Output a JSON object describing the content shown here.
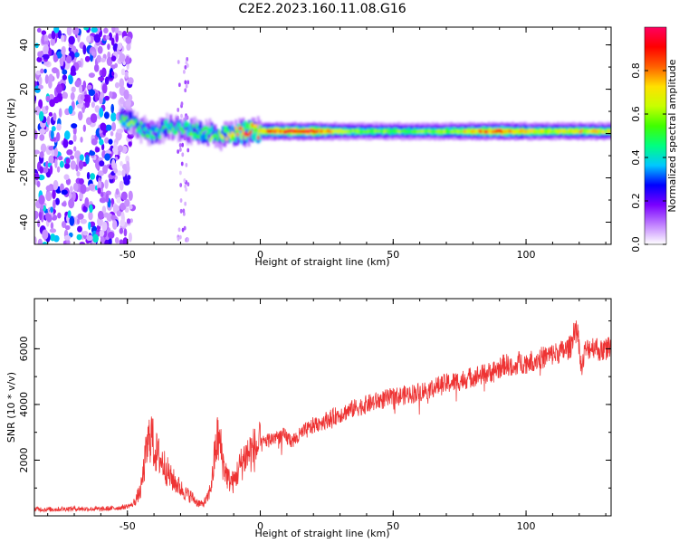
{
  "figure": {
    "title": "C2E2.2023.160.11.08.G16"
  },
  "chart_data": [
    {
      "type": "heatmap",
      "title": "C2E2.2023.160.11.08.G16",
      "xlabel": "Height of straight line (km)",
      "ylabel": "Frequency (Hz)",
      "xlim": [
        -85,
        132
      ],
      "ylim": [
        -50,
        48
      ],
      "x_ticks": [
        -50,
        0,
        50,
        100
      ],
      "y_ticks": [
        -40,
        -20,
        0,
        20,
        40
      ],
      "x_tick_labels": [
        "-50",
        "0",
        "50",
        "100"
      ],
      "y_tick_labels": [
        "-40",
        "-20",
        "0",
        "20",
        "40"
      ],
      "colorbar": {
        "label": "Normalized spectral amplitude",
        "range": [
          0,
          1
        ],
        "ticks": [
          0,
          0.2,
          0.4,
          0.6,
          0.8
        ],
        "tick_labels": [
          "0.0",
          "0.2",
          "0.4",
          "0.6",
          "0.8"
        ],
        "colormap": [
          "#ffffff",
          "#c080ff",
          "#7a00ff",
          "#0000ff",
          "#00c8ff",
          "#00ff80",
          "#40ff00",
          "#c8ff00",
          "#ffe000",
          "#ff6000",
          "#ff0000",
          "#ff0060"
        ]
      },
      "ridge": {
        "description_values": "center frequency of dominant spectral band vs height",
        "x": [
          -53,
          -50,
          -45,
          -40,
          -35,
          -30,
          -25,
          -20,
          -15,
          -10,
          -5,
          0,
          10,
          20,
          30,
          40,
          50,
          60,
          70,
          80,
          90,
          100,
          110,
          120,
          132
        ],
        "y": [
          8,
          6,
          2,
          0,
          3,
          2,
          1,
          0,
          -1,
          0,
          1,
          1,
          1,
          1,
          1,
          1,
          1,
          1,
          1,
          1,
          1,
          1,
          1,
          1,
          1
        ],
        "peak_amplitude": [
          0.5,
          0.55,
          0.5,
          0.45,
          0.5,
          0.5,
          0.55,
          0.55,
          0.6,
          0.75,
          0.85,
          0.8,
          0.85,
          0.9,
          0.6,
          0.55,
          0.55,
          0.55,
          0.6,
          0.75,
          0.85,
          0.7,
          0.65,
          0.7,
          0.65
        ]
      },
      "noise_region": {
        "x_range": [
          -85,
          -48
        ],
        "y_range": [
          -50,
          48
        ],
        "amplitude": 0.45
      },
      "stripe_region": {
        "x_range": [
          -31,
          -27
        ],
        "y_range": [
          -50,
          38
        ],
        "amplitude": 0.2
      }
    },
    {
      "type": "line",
      "xlabel": "Height of straight line (km)",
      "ylabel": "SNR (10 * v/v)",
      "xlim": [
        -85,
        132
      ],
      "ylim": [
        0,
        7800
      ],
      "x_ticks": [
        -50,
        0,
        50,
        100
      ],
      "y_ticks": [
        2000,
        4000,
        6000
      ],
      "x_tick_labels": [
        "-50",
        "0",
        "50",
        "100"
      ],
      "y_tick_labels": [
        "2000",
        "4000",
        "6000"
      ],
      "color": "#ee3333",
      "series": [
        {
          "x": [
            -85,
            -80,
            -70,
            -60,
            -52,
            -48,
            -45,
            -43,
            -42,
            -41,
            -40,
            -38,
            -36,
            -34,
            -32,
            -30,
            -28,
            -26,
            -24,
            -22,
            -20,
            -19,
            -18,
            -17,
            -16,
            -15,
            -14,
            -12,
            -10,
            -8,
            -6,
            -4,
            -2,
            0,
            2,
            4,
            6,
            8,
            10,
            12,
            14,
            16,
            18,
            20,
            25,
            30,
            35,
            40,
            45,
            50,
            55,
            60,
            65,
            70,
            75,
            80,
            85,
            90,
            92,
            94,
            95,
            96,
            97,
            98,
            100,
            105,
            110,
            115,
            117,
            118,
            119,
            120,
            121,
            122,
            124,
            126,
            128,
            132
          ],
          "y": [
            250,
            230,
            260,
            240,
            300,
            400,
            900,
            2200,
            2700,
            3000,
            2400,
            2100,
            1800,
            1400,
            1200,
            1000,
            800,
            700,
            500,
            400,
            600,
            900,
            1400,
            2300,
            2800,
            2500,
            1900,
            1300,
            1200,
            1700,
            2100,
            2300,
            2400,
            2500,
            2700,
            2750,
            2850,
            2900,
            2800,
            2700,
            2800,
            3000,
            3100,
            3250,
            3450,
            3650,
            3850,
            4000,
            4150,
            4250,
            4350,
            4450,
            4600,
            4750,
            4850,
            5000,
            5100,
            5300,
            5450,
            5400,
            5150,
            5300,
            5550,
            5500,
            5500,
            5650,
            5800,
            5950,
            6100,
            6700,
            6900,
            6100,
            5200,
            5900,
            6050,
            6100,
            5900,
            6100
          ]
        }
      ]
    }
  ]
}
